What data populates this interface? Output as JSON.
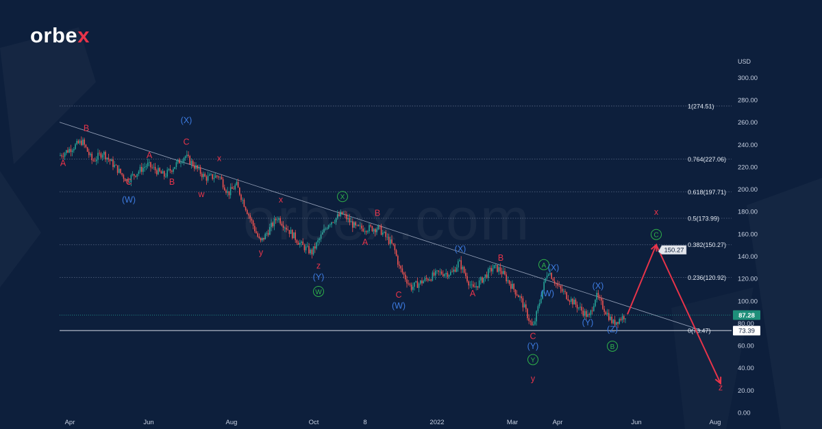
{
  "brand": {
    "logo_main": "orbe",
    "logo_accent": "x",
    "watermark": "orbex.com"
  },
  "colors": {
    "background": "#0d1f3c",
    "red": "#e8344a",
    "blue": "#3d7be0",
    "green": "#2fb34a",
    "candle_up": "#26a69a",
    "candle_down": "#ef5350"
  },
  "chart_data": {
    "type": "candlestick",
    "currency_label": "USD",
    "y_ticks": [
      "300.00",
      "280.00",
      "260.00",
      "240.00",
      "220.00",
      "200.00",
      "180.00",
      "160.00",
      "140.00",
      "120.00",
      "100.00",
      "80.00",
      "60.00",
      "40.00",
      "20.00",
      "0.00"
    ],
    "x_ticks": [
      "Apr",
      "Jun",
      "Aug",
      "Oct",
      "8",
      "2022",
      "Mar",
      "Apr",
      "Jun",
      "Aug"
    ],
    "ylim": [
      0,
      310
    ],
    "price_path": [
      [
        "Apr",
        230
      ],
      [
        "Apr",
        243
      ],
      [
        "Apr",
        225
      ],
      [
        "Apr",
        233
      ],
      [
        "Jun",
        208
      ],
      [
        "Jun",
        222
      ],
      [
        "Jun",
        212
      ],
      [
        "Jun",
        230
      ],
      [
        "Jun",
        210
      ],
      [
        "Aug",
        212
      ],
      [
        "Aug",
        196
      ],
      [
        "Aug",
        204
      ],
      [
        "Aug",
        152
      ],
      [
        "Aug",
        175
      ],
      [
        "Aug",
        150
      ],
      [
        "Oct",
        143
      ],
      [
        "Oct",
        170
      ],
      [
        "Oct",
        178
      ],
      [
        "Oct",
        165
      ],
      [
        "8",
        165
      ],
      [
        "8",
        148
      ],
      [
        "8",
        130
      ],
      [
        "8",
        112
      ],
      [
        "8",
        125
      ],
      [
        "2022",
        125
      ],
      [
        "2022",
        135
      ],
      [
        "2022",
        110
      ],
      [
        "2022",
        130
      ],
      [
        "2022",
        128
      ],
      [
        "Mar",
        102
      ],
      [
        "Mar",
        75
      ],
      [
        "Mar",
        105
      ],
      [
        "Apr",
        128
      ],
      [
        "Apr",
        112
      ],
      [
        "Apr",
        85
      ],
      [
        "Apr",
        105
      ],
      [
        "Apr",
        80
      ],
      [
        "Jun",
        88
      ]
    ],
    "fib_levels": [
      {
        "label": "1(274.51)",
        "value": 274.51
      },
      {
        "label": "0.764(227.06)",
        "value": 227.06
      },
      {
        "label": "0.618(197.71)",
        "value": 197.71
      },
      {
        "label": "0.5(173.99)",
        "value": 173.99
      },
      {
        "label": "0.382(150.27)",
        "value": 150.27
      },
      {
        "label": "0.236(120.92)",
        "value": 120.92
      },
      {
        "label": "0(73.47)",
        "value": 73.47
      }
    ],
    "price_tags": [
      {
        "text": "87.28",
        "value": 87.28,
        "style": "green"
      },
      {
        "text": "73.39",
        "value": 73.39,
        "style": "white"
      },
      {
        "text": "150.27",
        "value": 150.27,
        "style": "callout"
      }
    ],
    "projection": [
      {
        "point": "Jun",
        "value": 88
      },
      {
        "point": "Jun",
        "value": 150.27
      },
      {
        "point": "Aug",
        "value": 26
      }
    ],
    "wave_labels": [
      {
        "text": "A",
        "color": "red",
        "value": 221
      },
      {
        "text": "B",
        "color": "red",
        "value": 252
      },
      {
        "text": "C",
        "color": "red",
        "value": 204
      },
      {
        "text": "(W)",
        "color": "blue",
        "value": 188
      },
      {
        "text": "A",
        "color": "red",
        "value": 228
      },
      {
        "text": "B",
        "color": "red",
        "value": 204
      },
      {
        "text": "(X)",
        "color": "blue",
        "value": 259
      },
      {
        "text": "C",
        "color": "red",
        "value": 240
      },
      {
        "text": "x",
        "color": "red",
        "value": 225
      },
      {
        "text": "w",
        "color": "red",
        "value": 193
      },
      {
        "text": "x",
        "color": "red",
        "value": 188
      },
      {
        "text": "y",
        "color": "red",
        "value": 141
      },
      {
        "text": "z",
        "color": "red",
        "value": 129
      },
      {
        "text": "(Y)",
        "color": "blue",
        "value": 119
      },
      {
        "text": "W",
        "color": "green",
        "circle": true,
        "value": 106
      },
      {
        "text": "X",
        "color": "green",
        "circle": true,
        "value": 191
      },
      {
        "text": "B",
        "color": "red",
        "value": 176
      },
      {
        "text": "A",
        "color": "red",
        "value": 150
      },
      {
        "text": "C",
        "color": "red",
        "value": 103
      },
      {
        "text": "(W)",
        "color": "blue",
        "value": 93
      },
      {
        "text": "(X)",
        "color": "blue",
        "value": 144
      },
      {
        "text": "B",
        "color": "red",
        "value": 136
      },
      {
        "text": "A",
        "color": "red",
        "value": 104
      },
      {
        "text": "A",
        "color": "green",
        "circle": true,
        "value": 130
      },
      {
        "text": "(X)",
        "color": "blue",
        "value": 127
      },
      {
        "text": "(W)",
        "color": "blue",
        "value": 104
      },
      {
        "text": "C",
        "color": "red",
        "value": 66
      },
      {
        "text": "(Y)",
        "color": "blue",
        "value": 57
      },
      {
        "text": "Y",
        "color": "green",
        "circle": true,
        "value": 45
      },
      {
        "text": "y",
        "color": "red",
        "value": 28
      },
      {
        "text": "(X)",
        "color": "blue",
        "value": 111
      },
      {
        "text": "(Y)",
        "color": "blue",
        "value": 78
      },
      {
        "text": "(Z)",
        "color": "blue",
        "value": 72
      },
      {
        "text": "B",
        "color": "green",
        "circle": true,
        "value": 57
      },
      {
        "text": "C",
        "color": "green",
        "circle": true,
        "value": 157
      },
      {
        "text": "x",
        "color": "red",
        "value": 177
      },
      {
        "text": "z",
        "color": "red",
        "value": 20
      }
    ]
  }
}
